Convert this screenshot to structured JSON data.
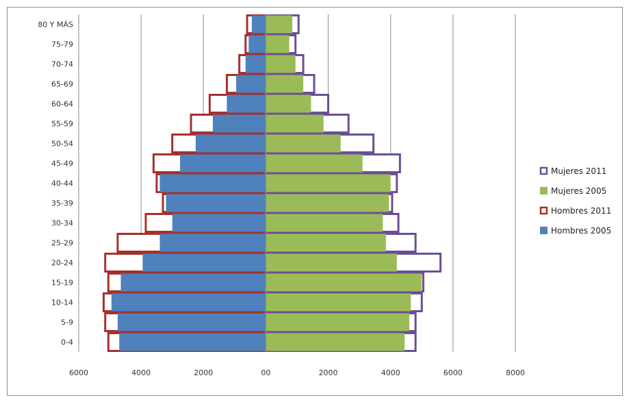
{
  "chart_data": {
    "type": "bar",
    "orientation": "horizontal",
    "title": "",
    "xlabel": "",
    "ylabel": "",
    "categories": [
      "0-4",
      "5-9",
      "10-14",
      "15-19",
      "20-24",
      "25-29",
      "30-34",
      "35-39",
      "40-44",
      "45-49",
      "50-54",
      "55-59",
      "60-64",
      "65-69",
      "70-74",
      "75-79",
      "80 Y MÁS"
    ],
    "series": [
      {
        "name": "Hombres 2005",
        "side": "left",
        "style": "filled",
        "color": "#4f81bd",
        "values": [
          4700,
          4750,
          4950,
          4650,
          3950,
          3400,
          3000,
          3200,
          3400,
          2750,
          2250,
          1700,
          1250,
          950,
          650,
          550,
          450
        ]
      },
      {
        "name": "Hombres 2011",
        "side": "left",
        "style": "outline",
        "color": "#a5302c",
        "values": [
          5050,
          5150,
          5200,
          5050,
          5150,
          4750,
          3850,
          3300,
          3500,
          3600,
          3000,
          2400,
          1800,
          1250,
          850,
          650,
          600
        ]
      },
      {
        "name": "Mujeres 2005",
        "side": "right",
        "style": "filled",
        "color": "#9bbb59",
        "values": [
          4450,
          4600,
          4650,
          5000,
          4200,
          3850,
          3750,
          3950,
          4000,
          3100,
          2400,
          1850,
          1450,
          1200,
          950,
          750,
          850
        ]
      },
      {
        "name": "Mujeres 2011",
        "side": "right",
        "style": "outline",
        "color": "#6a4f94",
        "values": [
          4800,
          4800,
          5000,
          5050,
          5600,
          4800,
          4250,
          4050,
          4200,
          4300,
          3450,
          2650,
          2000,
          1550,
          1200,
          950,
          1050
        ]
      }
    ],
    "x_ticks": [
      "6000",
      "4000",
      "2000",
      "00",
      "2000",
      "4000",
      "6000",
      "8000"
    ],
    "xlim": [
      -6000,
      8000
    ],
    "grid": "vertical major",
    "legend": {
      "position": "right",
      "order": [
        "Mujeres 2011",
        "Mujeres 2005",
        "Hombres 2011",
        "Hombres 2005"
      ]
    }
  }
}
